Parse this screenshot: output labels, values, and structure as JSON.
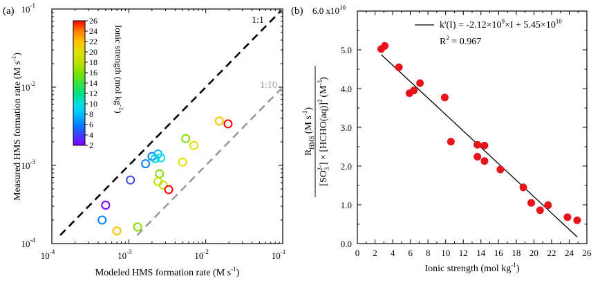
{
  "chart_data": [
    {
      "panel_label": "(a)",
      "type": "scatter",
      "xscale": "log",
      "yscale": "log",
      "xlim": [
        0.0001,
        0.1
      ],
      "ylim": [
        0.0001,
        0.1
      ],
      "xlabel": "Modeled HMS formation rate (M s",
      "xlabel_sup": "-1",
      "xlabel_end": ")",
      "ylabel": "Measured HMS formation rate (M s",
      "ylabel_sup": "-1",
      "ylabel_end": ")",
      "x_ticks": [
        {
          "base": "10",
          "exp": "-4",
          "value": 0.0001
        },
        {
          "base": "10",
          "exp": "-3",
          "value": 0.001
        },
        {
          "base": "10",
          "exp": "-2",
          "value": 0.01
        },
        {
          "base": "10",
          "exp": "-1",
          "value": 0.1
        }
      ],
      "y_ticks": [
        {
          "base": "10",
          "exp": "-4",
          "value": 0.0001
        },
        {
          "base": "10",
          "exp": "-3",
          "value": 0.001
        },
        {
          "base": "10",
          "exp": "-2",
          "value": 0.01
        },
        {
          "base": "10",
          "exp": "-1",
          "value": 0.1
        }
      ],
      "reference_lines": [
        {
          "label": "1:1",
          "ratio": 1,
          "color": "#000000"
        },
        {
          "label": "1:10",
          "ratio": 0.1,
          "color": "#999999"
        }
      ],
      "colorbar": {
        "label": "Ionic strength (mol kg",
        "label_sup": "-1",
        "label_end": ")",
        "min": 2,
        "max": 26,
        "ticks": [
          "2",
          "4",
          "6",
          "8",
          "10",
          "12",
          "14",
          "16",
          "18",
          "20",
          "22",
          "24",
          "26"
        ],
        "colors": [
          "#7f00ff",
          "#4040ff",
          "#0080ff",
          "#00c0ff",
          "#00e0e0",
          "#00e080",
          "#40e040",
          "#80e000",
          "#c0e000",
          "#e0e000",
          "#ffc000",
          "#ff8000",
          "#ff0000"
        ]
      },
      "points": [
        {
          "x": 0.00045,
          "y": 0.0002,
          "ionic_strength": 6.0
        },
        {
          "x": 0.0005,
          "y": 0.00031,
          "ionic_strength": 2.5
        },
        {
          "x": 0.0007,
          "y": 0.000145,
          "ionic_strength": 21.0
        },
        {
          "x": 0.00105,
          "y": 0.00065,
          "ionic_strength": 3.0
        },
        {
          "x": 0.0013,
          "y": 0.000163,
          "ionic_strength": 16.0
        },
        {
          "x": 0.00165,
          "y": 0.00105,
          "ionic_strength": 5.0
        },
        {
          "x": 0.002,
          "y": 0.0013,
          "ionic_strength": 6.5
        },
        {
          "x": 0.0022,
          "y": 0.00122,
          "ionic_strength": 10.0
        },
        {
          "x": 0.0024,
          "y": 0.0014,
          "ionic_strength": 7.0
        },
        {
          "x": 0.0026,
          "y": 0.00125,
          "ionic_strength": 9.0
        },
        {
          "x": 0.0025,
          "y": 0.00078,
          "ionic_strength": 16.0
        },
        {
          "x": 0.0024,
          "y": 0.00062,
          "ionic_strength": 17.5
        },
        {
          "x": 0.0028,
          "y": 0.00056,
          "ionic_strength": 18.5
        },
        {
          "x": 0.0033,
          "y": 0.00049,
          "ionic_strength": 25.0
        },
        {
          "x": 0.005,
          "y": 0.0011,
          "ionic_strength": 20.0
        },
        {
          "x": 0.0055,
          "y": 0.0022,
          "ionic_strength": 15.0
        },
        {
          "x": 0.007,
          "y": 0.0018,
          "ionic_strength": 20.5
        },
        {
          "x": 0.015,
          "y": 0.0037,
          "ionic_strength": 22.5
        },
        {
          "x": 0.0195,
          "y": 0.0034,
          "ionic_strength": 25.0
        }
      ]
    },
    {
      "panel_label": "(b)",
      "type": "scatter",
      "xlim": [
        0,
        26
      ],
      "ylim": [
        0,
        6.0
      ],
      "xlabel": "Ionic strength (mol kg",
      "xlabel_sup": "-1",
      "xlabel_end": ")",
      "ylabel_num": "R",
      "ylabel_num_sub": "HMS",
      "ylabel_num_rest": "(M s",
      "ylabel_num_sup": "-1",
      "ylabel_num_end": ")",
      "ylabel_den_a": "[SO",
      "ylabel_den_sub": "3",
      "ylabel_den_sup": "2-",
      "ylabel_den_b": "] × [HCHO(aq)]",
      "ylabel_den_sup2": "2",
      "ylabel_den_c": "(M",
      "ylabel_den_sup3": "-3",
      "ylabel_den_d": ")",
      "x_ticks": [
        "0",
        "2",
        "4",
        "6",
        "8",
        "10",
        "12",
        "14",
        "16",
        "18",
        "20",
        "22",
        "24",
        "26"
      ],
      "y_ticks": [
        "0.0",
        "1.0",
        "2.0",
        "3.0",
        "4.0",
        "5.0"
      ],
      "y_top_label": "6.0 x10",
      "y_top_label_sup": "10",
      "y_multiplier": 10000000000,
      "fit": {
        "slope": -0.212,
        "intercept": 5.45,
        "x_range": [
          2.7,
          24.9
        ],
        "equation": "k'(I) = -2.12×10",
        "equation_sup1": "9",
        "equation_mid": "×I + 5.45×10",
        "equation_sup2": "10",
        "r2_label": "R",
        "r2_sup": "2",
        "r2_value": " = 0.967"
      },
      "marker_color": "#e8141c",
      "points": [
        {
          "x": 2.7,
          "y": 5.02
        },
        {
          "x": 3.1,
          "y": 5.1
        },
        {
          "x": 4.7,
          "y": 4.55
        },
        {
          "x": 5.9,
          "y": 3.88
        },
        {
          "x": 6.4,
          "y": 3.95
        },
        {
          "x": 7.1,
          "y": 4.14
        },
        {
          "x": 9.9,
          "y": 3.77
        },
        {
          "x": 10.6,
          "y": 2.63
        },
        {
          "x": 13.6,
          "y": 2.55
        },
        {
          "x": 13.6,
          "y": 2.24
        },
        {
          "x": 14.4,
          "y": 2.53
        },
        {
          "x": 14.4,
          "y": 2.13
        },
        {
          "x": 16.2,
          "y": 1.91
        },
        {
          "x": 18.8,
          "y": 1.45
        },
        {
          "x": 19.7,
          "y": 1.05
        },
        {
          "x": 20.7,
          "y": 0.86
        },
        {
          "x": 21.6,
          "y": 0.99
        },
        {
          "x": 23.8,
          "y": 0.68
        },
        {
          "x": 24.9,
          "y": 0.6
        }
      ]
    }
  ]
}
